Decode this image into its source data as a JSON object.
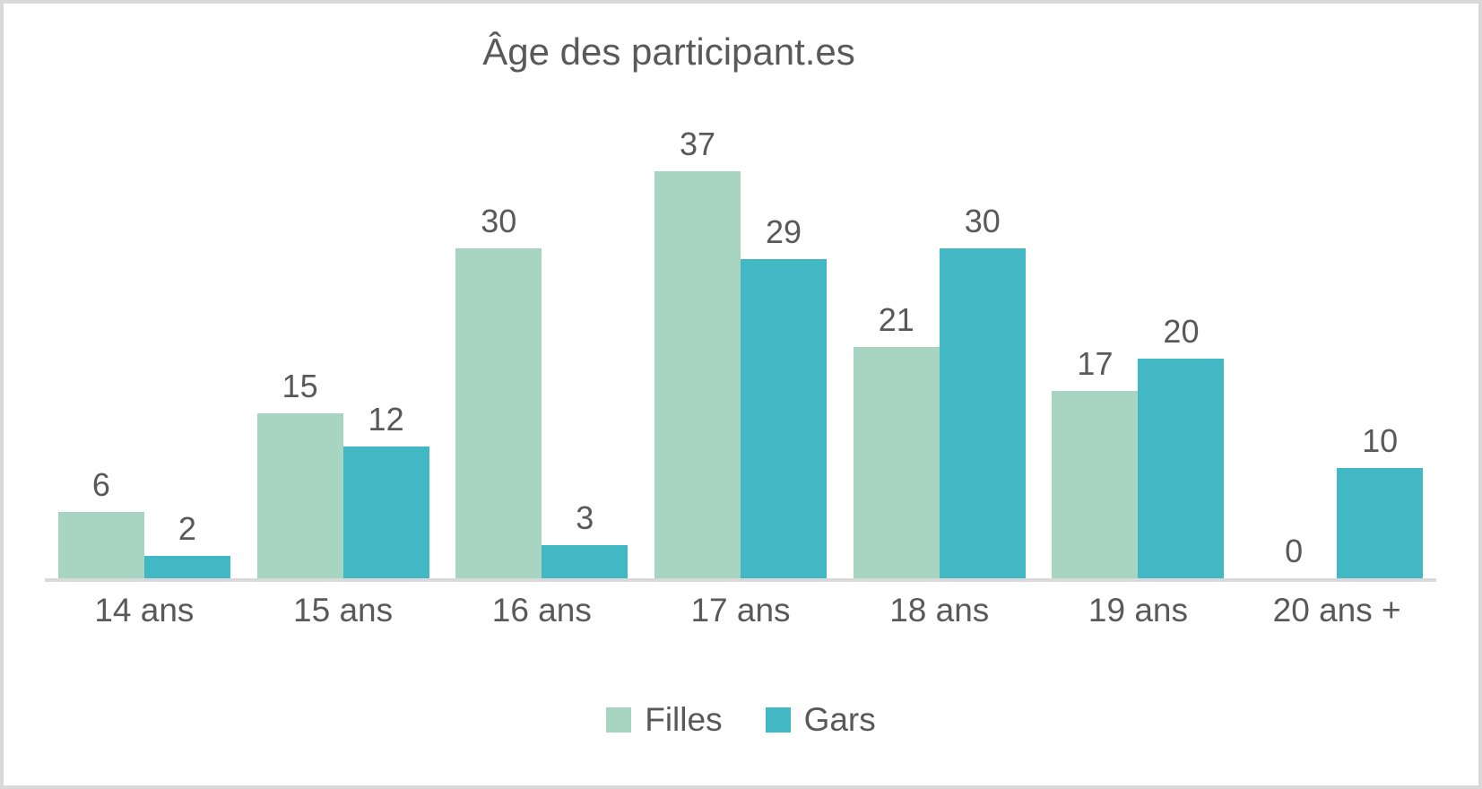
{
  "frame": {
    "border_color": "#d9d9d9",
    "background": "#ffffff"
  },
  "chart_data": {
    "type": "bar",
    "title": "Âge des participant.es",
    "categories": [
      "14 ans",
      "15 ans",
      "16 ans",
      "17 ans",
      "18 ans",
      "19 ans",
      "20 ans +"
    ],
    "series": [
      {
        "name": "Filles",
        "color": "#a8d5c2",
        "values": [
          6,
          15,
          30,
          37,
          21,
          17,
          0
        ]
      },
      {
        "name": "Gars",
        "color": "#42b8c4",
        "values": [
          2,
          12,
          3,
          29,
          30,
          20,
          10
        ]
      }
    ],
    "value_labels_shown": true,
    "xlabel": "",
    "ylabel": "",
    "ylim": [
      0,
      40
    ],
    "grid": false,
    "y_axis_ticks_shown": false,
    "legend_position": "bottom",
    "text_color": "#595959",
    "axis_line_color": "#d9d9d9"
  }
}
